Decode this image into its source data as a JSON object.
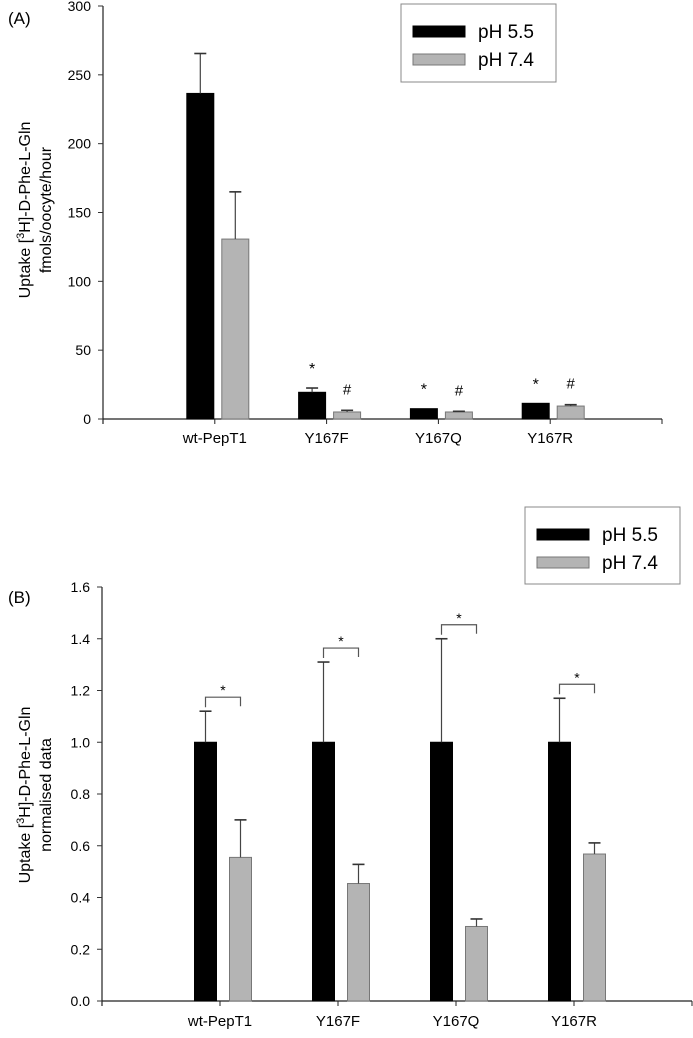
{
  "chart_data": [
    {
      "type": "bar",
      "panel_label": "(A)",
      "ylabel_line1_prefix": "Uptake [",
      "ylabel_sup": "3",
      "ylabel_line1_suffix": "H]-D-Phe-L-Gln",
      "ylabel_line2": "fmols/oocyte/hour",
      "categories": [
        "wt-PepT1",
        "Y167F",
        "Y167Q",
        "Y167R"
      ],
      "ylim": [
        0,
        300
      ],
      "yticks": [
        "0",
        "50",
        "100",
        "150",
        "200",
        "250",
        "300"
      ],
      "ytick_values": [
        0,
        50,
        100,
        150,
        200,
        250,
        300
      ],
      "legend": {
        "position": "top-right",
        "entries": [
          "pH 5.5",
          "pH 7.4"
        ]
      },
      "colors": [
        "#000000",
        "#b4b4b4"
      ],
      "series": [
        {
          "name": "pH 5.5",
          "values": [
            236.5,
            19.4,
            7.5,
            11.4
          ],
          "error": [
            29,
            3.1,
            0,
            0
          ]
        },
        {
          "name": "pH 7.4",
          "values": [
            130.7,
            5.1,
            5.1,
            9.4
          ],
          "error": [
            34.3,
            1.2,
            0.5,
            1.0
          ]
        }
      ],
      "annotations": [
        {
          "category": "Y167F",
          "series": "pH 5.5",
          "text": "*"
        },
        {
          "category": "Y167F",
          "series": "pH 7.4",
          "text": "#"
        },
        {
          "category": "Y167Q",
          "series": "pH 5.5",
          "text": "*"
        },
        {
          "category": "Y167Q",
          "series": "pH 7.4",
          "text": "#"
        },
        {
          "category": "Y167R",
          "series": "pH 5.5",
          "text": "*"
        },
        {
          "category": "Y167R",
          "series": "pH 7.4",
          "text": "#"
        }
      ]
    },
    {
      "type": "bar",
      "panel_label": "(B)",
      "ylabel_line1_prefix": "Uptake [",
      "ylabel_sup": "3",
      "ylabel_line1_suffix": "H]-D-Phe-L-Gln",
      "ylabel_line2": "normalised data",
      "categories": [
        "wt-PepT1",
        "Y167F",
        "Y167Q",
        "Y167R"
      ],
      "ylim": [
        0,
        1.6
      ],
      "yticks": [
        "0.0",
        "0.2",
        "0.4",
        "0.6",
        "0.8",
        "1.0",
        "1.2",
        "1.4",
        "1.6"
      ],
      "ytick_values": [
        0,
        0.2,
        0.4,
        0.6,
        0.8,
        1.0,
        1.2,
        1.4,
        1.6
      ],
      "legend": {
        "position": "top-right",
        "entries": [
          "pH 5.5",
          "pH 7.4"
        ]
      },
      "colors": [
        "#000000",
        "#b4b4b4"
      ],
      "series": [
        {
          "name": "pH 5.5",
          "values": [
            1.0,
            1.0,
            1.0,
            1.0
          ],
          "error": [
            0.12,
            0.31,
            0.4,
            0.17
          ]
        },
        {
          "name": "pH 7.4",
          "values": [
            0.555,
            0.454,
            0.288,
            0.568
          ],
          "error": [
            0.145,
            0.074,
            0.029,
            0.043
          ]
        }
      ],
      "significance": [
        {
          "category": "wt-PepT1",
          "text": "*"
        },
        {
          "category": "Y167F",
          "text": "*"
        },
        {
          "category": "Y167Q",
          "text": "*"
        },
        {
          "category": "Y167R",
          "text": "*"
        }
      ]
    }
  ]
}
